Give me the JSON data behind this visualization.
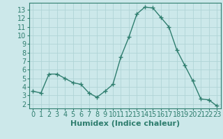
{
  "x": [
    0,
    1,
    2,
    3,
    4,
    5,
    6,
    7,
    8,
    9,
    10,
    11,
    12,
    13,
    14,
    15,
    16,
    17,
    18,
    19,
    20,
    21,
    22,
    23
  ],
  "y": [
    3.5,
    3.3,
    5.5,
    5.5,
    5.0,
    4.5,
    4.3,
    3.3,
    2.8,
    3.5,
    4.3,
    7.5,
    9.8,
    12.5,
    13.3,
    13.2,
    12.1,
    11.0,
    8.3,
    6.5,
    4.7,
    2.6,
    2.5,
    1.8
  ],
  "xlabel": "Humidex (Indice chaleur)",
  "xlim": [
    -0.5,
    23.5
  ],
  "ylim": [
    1.5,
    13.8
  ],
  "yticks": [
    2,
    3,
    4,
    5,
    6,
    7,
    8,
    9,
    10,
    11,
    12,
    13
  ],
  "xticks": [
    0,
    1,
    2,
    3,
    4,
    5,
    6,
    7,
    8,
    9,
    10,
    11,
    12,
    13,
    14,
    15,
    16,
    17,
    18,
    19,
    20,
    21,
    22,
    23
  ],
  "line_color": "#2e7d6e",
  "marker_color": "#2e7d6e",
  "bg_color": "#cce8ea",
  "grid_color": "#b0d4d6",
  "xlabel_fontsize": 8,
  "tick_fontsize": 7
}
